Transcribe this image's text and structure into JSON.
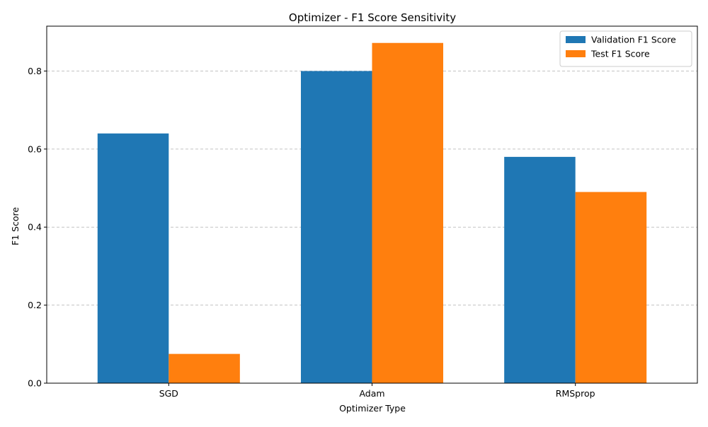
{
  "chart_data": {
    "type": "bar",
    "title": "Optimizer - F1 Score Sensitivity",
    "xlabel": "Optimizer Type",
    "ylabel": "F1 Score",
    "categories": [
      "SGD",
      "Adam",
      "RMSprop"
    ],
    "series": [
      {
        "name": "Validation F1 Score",
        "color": "#1f77b4",
        "values": [
          0.64,
          0.8,
          0.58
        ]
      },
      {
        "name": "Test F1 Score",
        "color": "#ff7f0e",
        "values": [
          0.075,
          0.872,
          0.49
        ]
      }
    ],
    "ylim": [
      0,
      0.915
    ],
    "yticks": [
      "0.0",
      "0.2",
      "0.4",
      "0.6",
      "0.8"
    ],
    "grid": "y-dashed",
    "legend_position": "top-right"
  }
}
